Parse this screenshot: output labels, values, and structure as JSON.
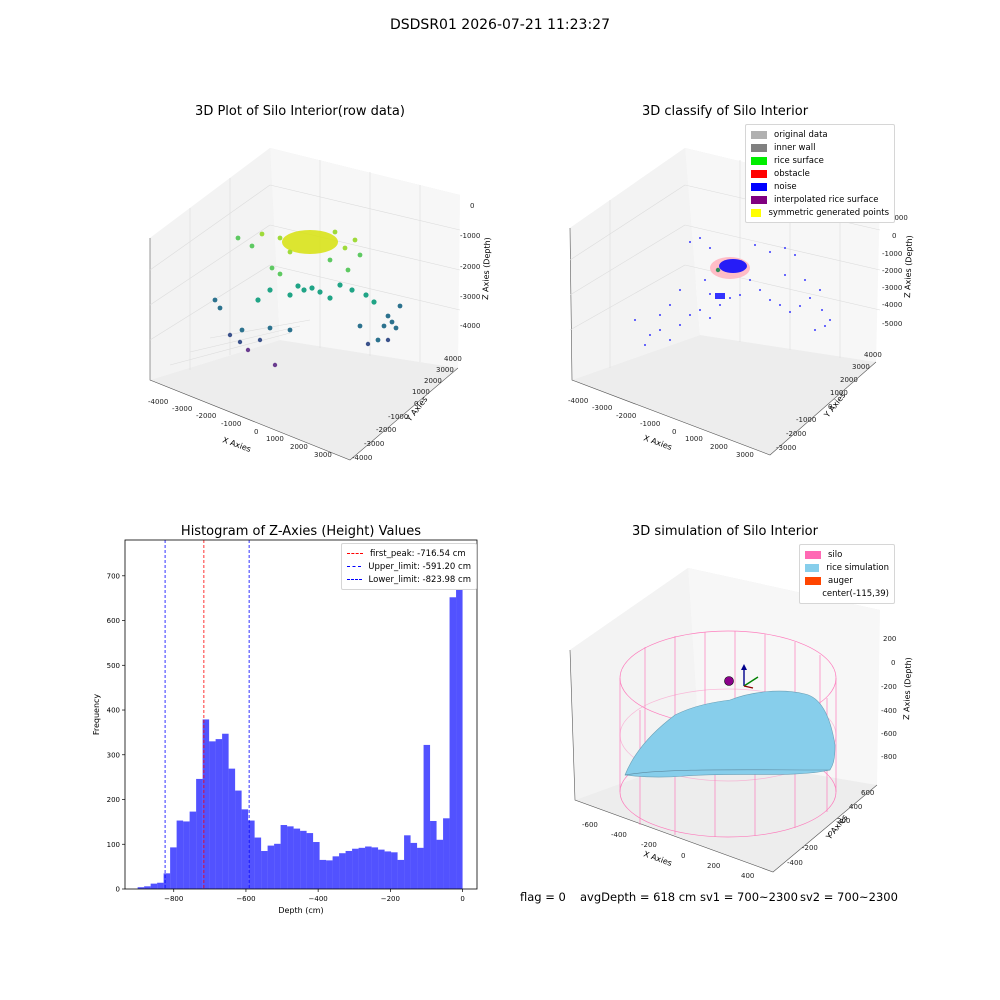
{
  "suptitle": "DSDSR01 2026-07-21 11:23:27",
  "panels": {
    "raw": {
      "title": "3D Plot of Silo Interior(row data)",
      "xlabel": "X Axies",
      "ylabel": "Y Axies",
      "zlabel": "Z Axies (Depth)",
      "xticks": [
        "-4000",
        "-3000",
        "-2000",
        "-1000",
        "0",
        "1000",
        "2000",
        "3000"
      ],
      "yticks": [
        "-4000",
        "-3000",
        "-2000",
        "-1000",
        "0",
        "1000",
        "2000",
        "3000",
        "4000"
      ],
      "zticks": [
        "0",
        "-1000",
        "-2000",
        "-3000",
        "-4000"
      ]
    },
    "classify": {
      "title": "3D classify of Silo Interior",
      "xlabel": "X Axies",
      "ylabel": "Y Axies",
      "zlabel": "Z Axies (Depth)",
      "xticks": [
        "-4000",
        "-3000",
        "-2000",
        "-1000",
        "0",
        "1000",
        "2000",
        "3000"
      ],
      "yticks": [
        "-3000",
        "-2000",
        "-1000",
        "0",
        "1000",
        "2000",
        "3000",
        "4000"
      ],
      "zticks": [
        "1000",
        "0",
        "-1000",
        "-2000",
        "-3000",
        "-4000",
        "-5000"
      ],
      "legend": [
        {
          "label": "original data",
          "color": "#b0b0b0"
        },
        {
          "label": "inner wall",
          "color": "#808080"
        },
        {
          "label": "rice surface",
          "color": "#00ee00"
        },
        {
          "label": "obstacle",
          "color": "#ff0000"
        },
        {
          "label": "noise",
          "color": "#0000ff"
        },
        {
          "label": "interpolated rice surface",
          "color": "#800080"
        },
        {
          "label": "symmetric generated points",
          "color": "#ffff00"
        }
      ]
    },
    "simulation": {
      "title": "3D simulation of Silo Interior",
      "xlabel": "X Axies",
      "ylabel": "Y Axies",
      "zlabel": "Z Axies (Depth)",
      "xticks": [
        "-600",
        "-400",
        "-200",
        "0",
        "200",
        "400"
      ],
      "yticks": [
        "-400",
        "-200",
        "0",
        "200",
        "400",
        "600"
      ],
      "zticks": [
        "200",
        "0",
        "-200",
        "-400",
        "-600",
        "-800"
      ],
      "legend": [
        {
          "label": "silo",
          "color": "#ff69b4"
        },
        {
          "label": "rice simulation",
          "color": "#87ceeb"
        },
        {
          "label": "auger",
          "color": "#ff4500"
        },
        {
          "label": "center(-115,39)",
          "color": ""
        }
      ]
    }
  },
  "status": {
    "flag": "flag = 0",
    "avg_depth": "avgDepth = 618 cm",
    "sv1": "sv1 = 700~2300",
    "sv2": "sv2 = 700~2300"
  },
  "chart_data": [
    {
      "type": "bar",
      "title": "Histogram of Z-Axies (Height) Values",
      "xlabel": "Depth (cm)",
      "ylabel": "Frequency",
      "xlim": [
        -935,
        40
      ],
      "ylim": [
        0,
        780
      ],
      "xticks": [
        -800,
        -600,
        -400,
        -200,
        0
      ],
      "yticks": [
        0,
        100,
        200,
        300,
        400,
        500,
        600,
        700
      ],
      "bar_color": "#0000ff",
      "bins": [
        {
          "x0": -900,
          "x1": -882,
          "y": 4
        },
        {
          "x0": -882,
          "x1": -864,
          "y": 6
        },
        {
          "x0": -864,
          "x1": -846,
          "y": 12
        },
        {
          "x0": -846,
          "x1": -828,
          "y": 14
        },
        {
          "x0": -828,
          "x1": -810,
          "y": 35
        },
        {
          "x0": -810,
          "x1": -792,
          "y": 93
        },
        {
          "x0": -792,
          "x1": -774,
          "y": 153
        },
        {
          "x0": -774,
          "x1": -756,
          "y": 151
        },
        {
          "x0": -756,
          "x1": -738,
          "y": 173
        },
        {
          "x0": -738,
          "x1": -720,
          "y": 246
        },
        {
          "x0": -720,
          "x1": -702,
          "y": 379
        },
        {
          "x0": -702,
          "x1": -684,
          "y": 330
        },
        {
          "x0": -684,
          "x1": -666,
          "y": 335
        },
        {
          "x0": -666,
          "x1": -648,
          "y": 347
        },
        {
          "x0": -648,
          "x1": -630,
          "y": 269
        },
        {
          "x0": -630,
          "x1": -612,
          "y": 220
        },
        {
          "x0": -612,
          "x1": -594,
          "y": 178
        },
        {
          "x0": -594,
          "x1": -576,
          "y": 153
        },
        {
          "x0": -576,
          "x1": -558,
          "y": 115
        },
        {
          "x0": -558,
          "x1": -540,
          "y": 85
        },
        {
          "x0": -540,
          "x1": -522,
          "y": 97
        },
        {
          "x0": -522,
          "x1": -504,
          "y": 101
        },
        {
          "x0": -504,
          "x1": -486,
          "y": 143
        },
        {
          "x0": -486,
          "x1": -468,
          "y": 140
        },
        {
          "x0": -468,
          "x1": -450,
          "y": 135
        },
        {
          "x0": -450,
          "x1": -432,
          "y": 130
        },
        {
          "x0": -432,
          "x1": -414,
          "y": 125
        },
        {
          "x0": -414,
          "x1": -396,
          "y": 105
        },
        {
          "x0": -396,
          "x1": -378,
          "y": 65
        },
        {
          "x0": -378,
          "x1": -360,
          "y": 64
        },
        {
          "x0": -360,
          "x1": -342,
          "y": 73
        },
        {
          "x0": -342,
          "x1": -324,
          "y": 80
        },
        {
          "x0": -324,
          "x1": -306,
          "y": 85
        },
        {
          "x0": -306,
          "x1": -288,
          "y": 90
        },
        {
          "x0": -288,
          "x1": -270,
          "y": 92
        },
        {
          "x0": -270,
          "x1": -252,
          "y": 95
        },
        {
          "x0": -252,
          "x1": -234,
          "y": 93
        },
        {
          "x0": -234,
          "x1": -216,
          "y": 88
        },
        {
          "x0": -216,
          "x1": -198,
          "y": 84
        },
        {
          "x0": -198,
          "x1": -180,
          "y": 82
        },
        {
          "x0": -180,
          "x1": -162,
          "y": 65
        },
        {
          "x0": -162,
          "x1": -144,
          "y": 120
        },
        {
          "x0": -144,
          "x1": -126,
          "y": 103
        },
        {
          "x0": -126,
          "x1": -108,
          "y": 92
        },
        {
          "x0": -108,
          "x1": -90,
          "y": 322
        },
        {
          "x0": -90,
          "x1": -72,
          "y": 152
        },
        {
          "x0": -72,
          "x1": -54,
          "y": 110
        },
        {
          "x0": -54,
          "x1": -36,
          "y": 158
        },
        {
          "x0": -36,
          "x1": -18,
          "y": 652
        },
        {
          "x0": -18,
          "x1": 0,
          "y": 745
        }
      ],
      "vlines": [
        {
          "x": -716.54,
          "color": "#ff0000",
          "label": "first_peak: -716.54 cm"
        },
        {
          "x": -591.2,
          "color": "#0000ff",
          "label": "Upper_limit: -591.20 cm"
        },
        {
          "x": -823.98,
          "color": "#0000ff",
          "label": "Lower_limit: -823.98 cm"
        }
      ],
      "legend_position": "top-right"
    }
  ]
}
